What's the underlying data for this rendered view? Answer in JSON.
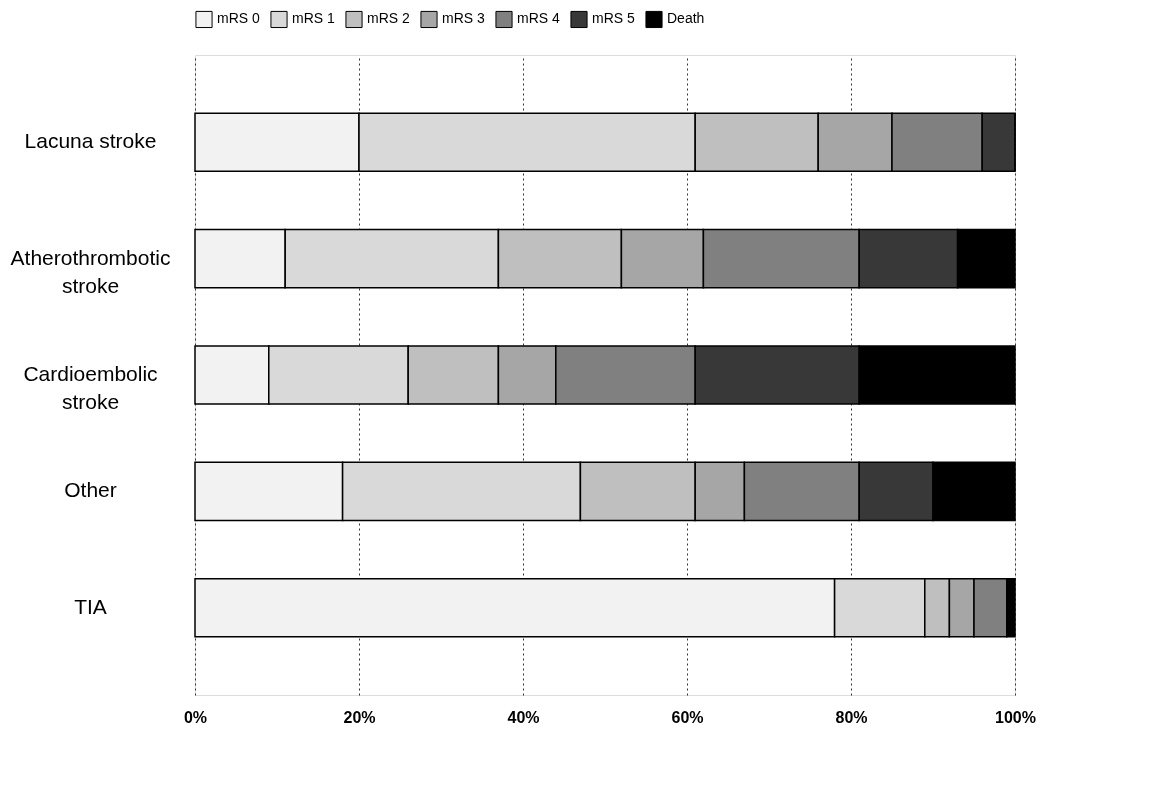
{
  "chart_data": {
    "type": "bar",
    "orientation": "horizontal",
    "stacked": true,
    "categories": [
      "Lacuna  stroke",
      "Atherothrombotic\nstroke",
      "Cardioembolic\nstroke",
      "Other",
      "TIA"
    ],
    "series": [
      {
        "name": "mRS 0",
        "color": "#f2f2f2",
        "values": [
          20,
          11,
          9,
          18,
          78
        ]
      },
      {
        "name": "mRS 1",
        "color": "#d9d9d9",
        "values": [
          41,
          26,
          17,
          29,
          11
        ]
      },
      {
        "name": "mRS 2",
        "color": "#bfbfbf",
        "values": [
          15,
          15,
          11,
          14,
          3
        ]
      },
      {
        "name": "mRS 3",
        "color": "#a6a6a6",
        "values": [
          9,
          10,
          7,
          6,
          3
        ]
      },
      {
        "name": "mRS 4",
        "color": "#808080",
        "values": [
          11,
          19,
          17,
          14,
          4
        ]
      },
      {
        "name": "mRS 5",
        "color": "#383838",
        "values": [
          4,
          12,
          20,
          9,
          0
        ]
      },
      {
        "name": "Death",
        "color": "#000000",
        "values": [
          0,
          7,
          19,
          10,
          1
        ]
      }
    ],
    "xlim": [
      0,
      100
    ],
    "xticks": [
      {
        "value": 0,
        "label": "0%"
      },
      {
        "value": 20,
        "label": "20%"
      },
      {
        "value": 40,
        "label": "40%"
      },
      {
        "value": 60,
        "label": "60%"
      },
      {
        "value": 80,
        "label": "80%"
      },
      {
        "value": 100,
        "label": "100%"
      }
    ],
    "grid": "x",
    "legend": "top"
  }
}
